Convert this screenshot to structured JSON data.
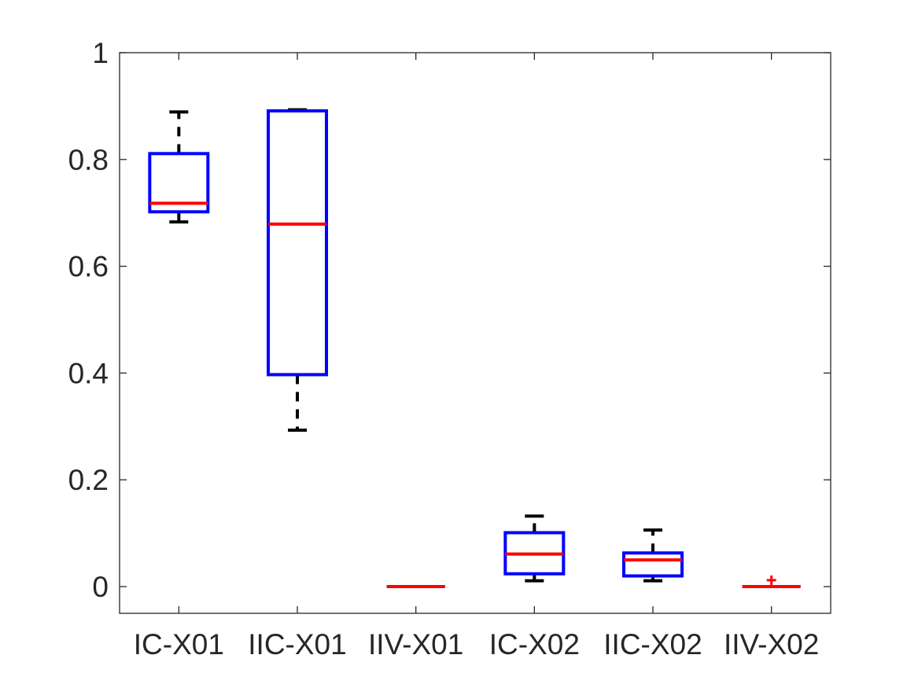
{
  "chart_data": {
    "type": "boxplot",
    "title": "",
    "xlabel": "",
    "ylabel": "",
    "ylim": [
      -0.05,
      1.0
    ],
    "yticks": [
      0,
      0.2,
      0.4,
      0.6,
      0.8,
      1
    ],
    "ytick_labels": [
      "0",
      "0.2",
      "0.4",
      "0.6",
      "0.8",
      "1"
    ],
    "categories": [
      "IC-X01",
      "IIC-X01",
      "IIV-X01",
      "IC-X02",
      "IIC-X02",
      "IIV-X02"
    ],
    "boxes": [
      {
        "category": "IC-X01",
        "whisker_low": 0.683,
        "q1": 0.702,
        "median": 0.718,
        "q3": 0.811,
        "whisker_high": 0.889,
        "outliers": []
      },
      {
        "category": "IIC-X01",
        "whisker_low": 0.293,
        "q1": 0.397,
        "median": 0.679,
        "q3": 0.891,
        "whisker_high": 0.893,
        "outliers": []
      },
      {
        "category": "IIV-X01",
        "whisker_low": 0.0,
        "q1": 0.0,
        "median": 0.0,
        "q3": 0.0,
        "whisker_high": 0.0,
        "outliers": []
      },
      {
        "category": "IC-X02",
        "whisker_low": 0.011,
        "q1": 0.024,
        "median": 0.061,
        "q3": 0.101,
        "whisker_high": 0.132,
        "outliers": []
      },
      {
        "category": "IIC-X02",
        "whisker_low": 0.011,
        "q1": 0.02,
        "median": 0.05,
        "q3": 0.063,
        "whisker_high": 0.106,
        "outliers": []
      },
      {
        "category": "IIV-X02",
        "whisker_low": 0.0,
        "q1": 0.0,
        "median": 0.0,
        "q3": 0.0,
        "whisker_high": 0.0,
        "outliers": [
          0.012
        ]
      }
    ],
    "colors": {
      "box": "#0000ff",
      "median": "#ff0000",
      "whisker": "#000000",
      "outlier": "#ff0000",
      "axis": "#262626"
    },
    "grid": false,
    "legend": "none"
  }
}
